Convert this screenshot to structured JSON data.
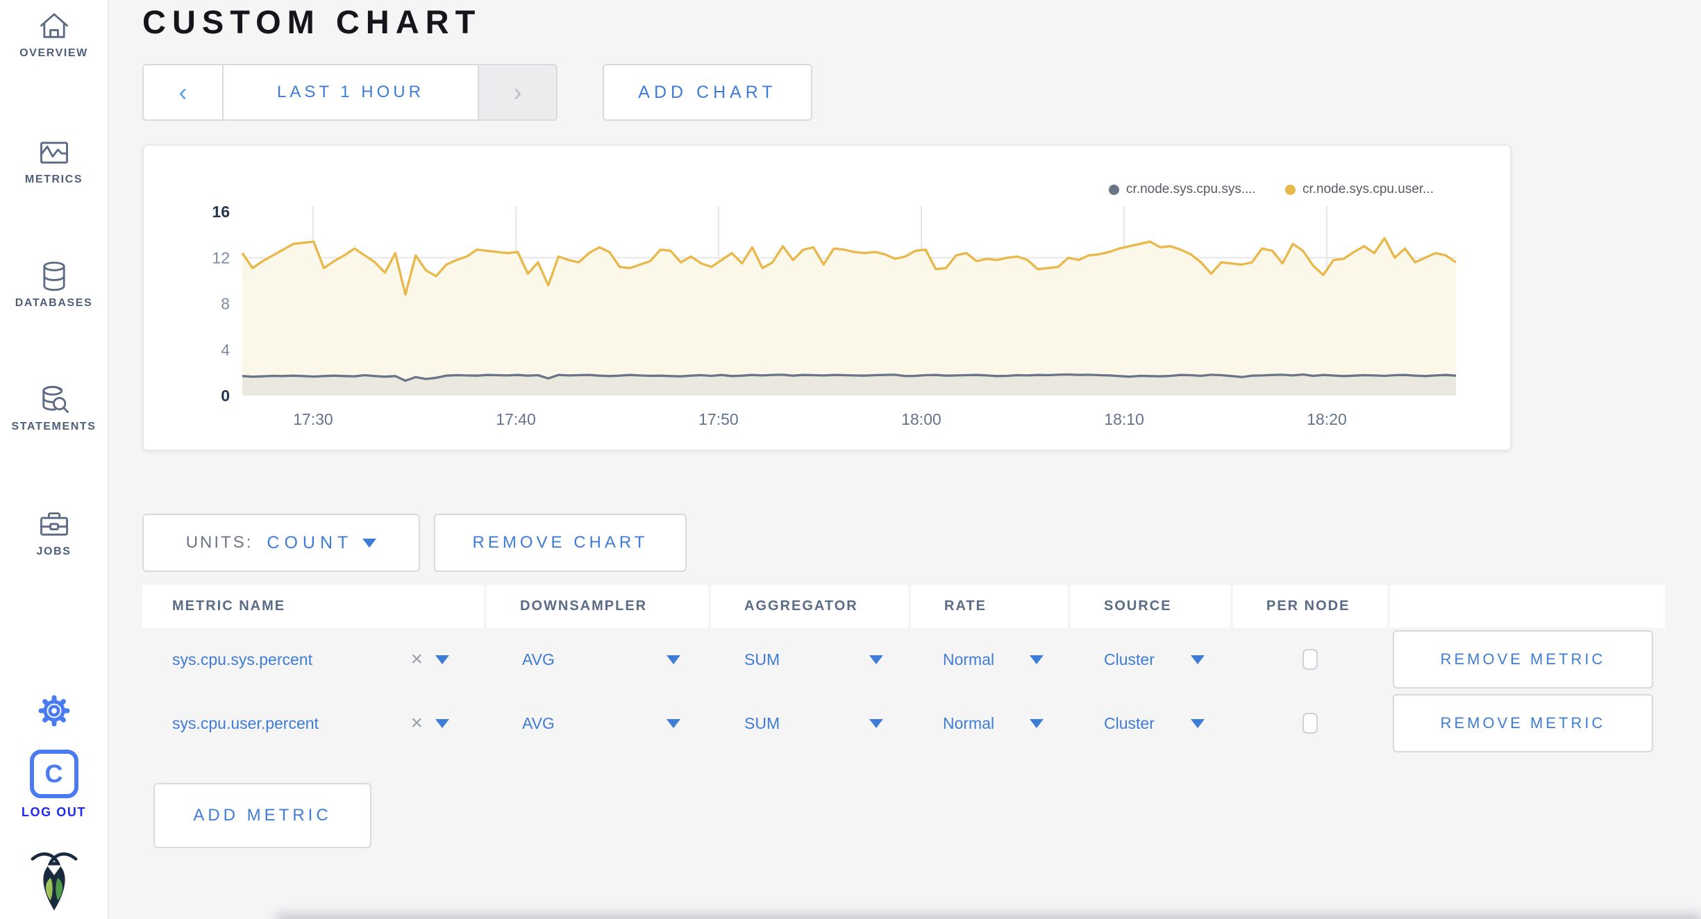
{
  "sidebar": {
    "items": [
      {
        "label": "OVERVIEW",
        "icon": "home-icon"
      },
      {
        "label": "METRICS",
        "icon": "metrics-icon"
      },
      {
        "label": "DATABASES",
        "icon": "databases-icon"
      },
      {
        "label": "STATEMENTS",
        "icon": "statements-icon"
      },
      {
        "label": "JOBS",
        "icon": "jobs-icon"
      }
    ],
    "logout_label": "LOG OUT",
    "logo_letter": "C"
  },
  "header": {
    "title": "CUSTOM CHART"
  },
  "time_selector": {
    "label": "LAST 1 HOUR",
    "prev": "‹",
    "next": "›"
  },
  "add_chart_label": "ADD CHART",
  "legend": [
    {
      "label": "cr.node.sys.cpu.sys...."
    },
    {
      "label": "cr.node.sys.cpu.user..."
    }
  ],
  "units_control": {
    "label": "UNITS:",
    "value": "COUNT"
  },
  "remove_chart_label": "REMOVE CHART",
  "metrics_table": {
    "columns": [
      "METRIC NAME",
      "DOWNSAMPLER",
      "AGGREGATOR",
      "RATE",
      "SOURCE",
      "PER NODE",
      ""
    ],
    "rows": [
      {
        "metric_name": "sys.cpu.sys.percent",
        "clear": "×",
        "downsampler": "AVG",
        "aggregator": "SUM",
        "rate": "Normal",
        "source": "Cluster",
        "per_node_checked": false,
        "remove_label": "REMOVE METRIC"
      },
      {
        "metric_name": "sys.cpu.user.percent",
        "clear": "×",
        "downsampler": "AVG",
        "aggregator": "SUM",
        "rate": "Normal",
        "source": "Cluster",
        "per_node_checked": false,
        "remove_label": "REMOVE METRIC"
      }
    ],
    "add_metric_label": "ADD METRIC"
  },
  "chart_data": {
    "type": "line",
    "title": "",
    "xlabel": "",
    "ylabel": "",
    "ylim": [
      0,
      16
    ],
    "y_ticks": [
      0,
      4,
      8,
      12,
      16
    ],
    "x_ticks": [
      "17:30",
      "17:40",
      "17:50",
      "18:00",
      "18:10",
      "18:20"
    ],
    "grid": true,
    "legend_position": "top-right",
    "series": [
      {
        "name": "cr.node.sys.cpu.sys....",
        "color": "#6b7588",
        "fill": "#ebe8e0",
        "values": [
          1.7,
          1.65,
          1.68,
          1.72,
          1.7,
          1.74,
          1.7,
          1.66,
          1.7,
          1.74,
          1.7,
          1.68,
          1.78,
          1.7,
          1.65,
          1.7,
          1.3,
          1.62,
          1.45,
          1.55,
          1.74,
          1.78,
          1.76,
          1.74,
          1.8,
          1.78,
          1.76,
          1.8,
          1.74,
          1.78,
          1.5,
          1.8,
          1.76,
          1.78,
          1.8,
          1.74,
          1.7,
          1.74,
          1.8,
          1.76,
          1.72,
          1.74,
          1.7,
          1.68,
          1.74,
          1.78,
          1.72,
          1.8,
          1.7,
          1.74,
          1.8,
          1.76,
          1.8,
          1.82,
          1.74,
          1.8,
          1.78,
          1.76,
          1.8,
          1.78,
          1.76,
          1.74,
          1.78,
          1.8,
          1.82,
          1.7,
          1.72,
          1.78,
          1.8,
          1.74,
          1.76,
          1.78,
          1.8,
          1.76,
          1.7,
          1.72,
          1.78,
          1.76,
          1.8,
          1.78,
          1.82,
          1.84,
          1.8,
          1.82,
          1.78,
          1.76,
          1.7,
          1.65,
          1.72,
          1.7,
          1.68,
          1.72,
          1.8,
          1.78,
          1.72,
          1.82,
          1.78,
          1.7,
          1.62,
          1.74,
          1.76,
          1.8,
          1.82,
          1.76,
          1.84,
          1.72,
          1.8,
          1.75,
          1.7,
          1.74,
          1.78,
          1.76,
          1.72,
          1.78,
          1.8,
          1.74,
          1.7,
          1.76,
          1.8,
          1.74
        ]
      },
      {
        "name": "cr.node.sys.cpu.user...",
        "color": "#e8b84a",
        "fill": "#fbf7e9",
        "values": [
          12.4,
          11.1,
          11.7,
          12.2,
          12.7,
          13.2,
          13.3,
          13.4,
          11.1,
          11.7,
          12.2,
          12.8,
          12.2,
          11.6,
          10.7,
          12.4,
          8.8,
          12.2,
          10.9,
          10.4,
          11.4,
          11.8,
          12.1,
          12.7,
          12.6,
          12.5,
          12.4,
          12.5,
          10.6,
          11.6,
          9.6,
          12.1,
          11.8,
          11.6,
          12.4,
          12.9,
          12.5,
          11.2,
          11.1,
          11.4,
          11.7,
          12.7,
          12.6,
          11.6,
          12.1,
          11.5,
          11.2,
          11.8,
          12.4,
          11.5,
          12.9,
          11.1,
          11.6,
          13.0,
          11.8,
          12.7,
          12.9,
          11.4,
          12.8,
          12.7,
          12.5,
          12.4,
          12.5,
          12.3,
          11.9,
          12.1,
          12.6,
          12.7,
          11.0,
          11.1,
          12.2,
          12.4,
          11.7,
          11.9,
          11.8,
          12.0,
          12.1,
          11.8,
          11.0,
          11.1,
          11.2,
          12.0,
          11.8,
          12.2,
          12.3,
          12.5,
          12.8,
          13.0,
          13.2,
          13.4,
          12.9,
          13.0,
          12.7,
          12.3,
          11.6,
          10.6,
          11.6,
          11.5,
          11.4,
          11.6,
          12.8,
          12.6,
          11.5,
          13.2,
          12.6,
          11.3,
          10.5,
          11.8,
          11.9,
          12.5,
          13.0,
          12.4,
          13.7,
          12.0,
          12.8,
          11.6,
          12.0,
          12.4,
          12.2,
          11.6
        ]
      }
    ]
  }
}
